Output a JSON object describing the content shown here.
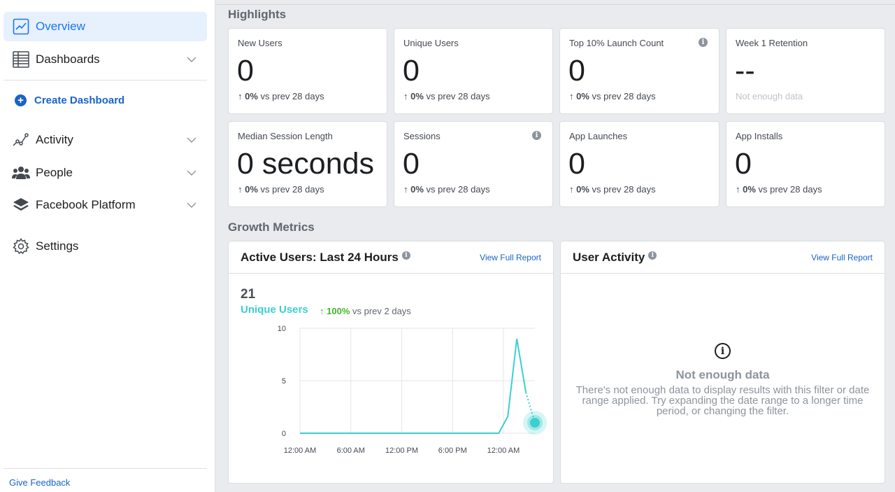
{
  "sidebar": {
    "overview": "Overview",
    "dashboards": "Dashboards",
    "create_dashboard": "Create Dashboard",
    "activity": "Activity",
    "people": "People",
    "facebook_platform": "Facebook Platform",
    "settings": "Settings",
    "give_feedback": "Give Feedback"
  },
  "highlights": {
    "title": "Highlights",
    "cards": [
      {
        "label": "New Users",
        "value": "0",
        "pct": "0%",
        "suffix": " vs prev 28 days"
      },
      {
        "label": "Unique Users",
        "value": "0",
        "pct": "0%",
        "suffix": " vs prev 28 days"
      },
      {
        "label": "Top 10% Launch Count",
        "value": "0",
        "pct": "0%",
        "suffix": " vs prev 28 days"
      },
      {
        "label": "Week 1 Retention",
        "value": "--",
        "note": "Not enough data"
      },
      {
        "label": "Median Session Length",
        "value": "0 seconds",
        "pct": "0%",
        "suffix": " vs prev 28 days"
      },
      {
        "label": "Sessions",
        "value": "0",
        "pct": "0%",
        "suffix": " vs prev 28 days"
      },
      {
        "label": "App Launches",
        "value": "0",
        "pct": "0%",
        "suffix": " vs prev 28 days"
      },
      {
        "label": "App Installs",
        "value": "0",
        "pct": "0%",
        "suffix": " vs prev 28 days"
      }
    ]
  },
  "growth": {
    "title": "Growth Metrics",
    "active_users": {
      "title": "Active Users: Last 24 Hours",
      "link": "View Full Report",
      "count": "21",
      "series_label": "Unique Users",
      "change_pct": "100%",
      "change_suffix": " vs prev 2 days"
    },
    "user_activity": {
      "title": "User Activity",
      "link": "View Full Report",
      "empty_title": "Not enough data",
      "empty_text": "There's not enough data to display results with this filter or date range applied. Try expanding the date range to a longer time period, or changing the filter."
    }
  },
  "colors": {
    "accent": "#1877f2",
    "link": "#1a63c7",
    "series": "#3ccfcf",
    "positive": "#42b72a"
  },
  "chart_data": {
    "type": "line",
    "x_tick_labels": [
      "12:00 AM",
      "6:00 AM",
      "12:00 PM",
      "6:00 PM",
      "12:00 AM"
    ],
    "y_tick_labels": [
      "0",
      "5",
      "10"
    ],
    "ylim": [
      0,
      10
    ],
    "xlim": [
      0,
      26
    ],
    "grid": true,
    "series": [
      {
        "name": "Unique Users",
        "x": [
          0,
          1,
          2,
          3,
          4,
          5,
          6,
          7,
          8,
          9,
          10,
          11,
          12,
          13,
          14,
          15,
          16,
          17,
          18,
          19,
          20,
          21,
          22,
          23,
          24,
          25
        ],
        "y": [
          0,
          0,
          0,
          0,
          0,
          0,
          0,
          0,
          0,
          0,
          0,
          0,
          0,
          0,
          0,
          0,
          0,
          0,
          0,
          0,
          0,
          0,
          0,
          1.6,
          9,
          3.9
        ]
      }
    ],
    "partial_point": {
      "x": 26,
      "y": 1
    }
  }
}
